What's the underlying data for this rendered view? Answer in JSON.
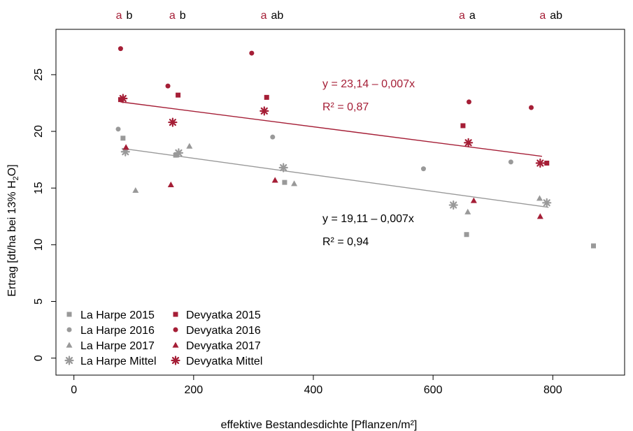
{
  "chart_data": {
    "type": "scatter",
    "xlabel": "effektive Bestandesdichte [Pflanzen/m²]",
    "ylabel_main": "Ertrag [dt/ha bei 13% H",
    "ylabel_sub": "2",
    "ylabel_end": "O]",
    "xlim": [
      -30,
      920
    ],
    "ylim": [
      -1.5,
      29
    ],
    "xticks": [
      0,
      200,
      400,
      600,
      800
    ],
    "yticks": [
      0,
      5,
      10,
      15,
      20,
      25
    ],
    "colors": {
      "la_harpe": "#999999",
      "devyatka": "#a51e36",
      "la_harpe_line": "#999999",
      "devyatka_line": "#a51e36"
    },
    "series": [
      {
        "name": "La Harpe 2015",
        "marker": "square",
        "color": "#999999",
        "points": [
          [
            82,
            19.4
          ],
          [
            170,
            17.9
          ],
          [
            352,
            15.5
          ],
          [
            656,
            10.9
          ],
          [
            868,
            9.9
          ]
        ]
      },
      {
        "name": "La Harpe 2016",
        "marker": "circle",
        "color": "#999999",
        "points": [
          [
            74,
            20.2
          ],
          [
            332,
            19.5
          ],
          [
            584,
            16.7
          ],
          [
            730,
            17.3
          ]
        ]
      },
      {
        "name": "La Harpe 2017",
        "marker": "triangle",
        "color": "#999999",
        "points": [
          [
            103,
            14.8
          ],
          [
            193,
            18.7
          ],
          [
            368,
            15.4
          ],
          [
            658,
            12.9
          ],
          [
            778,
            14.1
          ]
        ]
      },
      {
        "name": "La Harpe Mittel",
        "marker": "star",
        "color": "#999999",
        "points": [
          [
            86,
            18.2
          ],
          [
            175,
            18.1
          ],
          [
            350,
            16.8
          ],
          [
            634,
            13.5
          ],
          [
            790,
            13.7
          ]
        ]
      },
      {
        "name": "Devyatka 2015",
        "marker": "square",
        "color": "#a51e36",
        "points": [
          [
            78,
            22.8
          ],
          [
            174,
            23.2
          ],
          [
            322,
            23.0
          ],
          [
            650,
            20.5
          ],
          [
            790,
            17.2
          ]
        ]
      },
      {
        "name": "Devyatka 2016",
        "marker": "circle",
        "color": "#a51e36",
        "points": [
          [
            78,
            27.3
          ],
          [
            157,
            24.0
          ],
          [
            297,
            26.9
          ],
          [
            660,
            22.6
          ],
          [
            764,
            22.1
          ]
        ]
      },
      {
        "name": "Devyatka 2017",
        "marker": "triangle",
        "color": "#a51e36",
        "points": [
          [
            87,
            18.6
          ],
          [
            162,
            15.3
          ],
          [
            336,
            15.7
          ],
          [
            668,
            13.9
          ],
          [
            779,
            12.5
          ]
        ]
      },
      {
        "name": "Devyatka Mittel",
        "marker": "star",
        "color": "#a51e36",
        "points": [
          [
            82,
            22.9
          ],
          [
            165,
            20.8
          ],
          [
            318,
            21.8
          ],
          [
            659,
            19.0
          ],
          [
            779,
            17.2
          ]
        ]
      }
    ],
    "regression_lines": [
      {
        "name": "Devyatka",
        "color": "#a51e36",
        "x": [
          78,
          782
        ],
        "y": [
          22.6,
          17.8
        ],
        "equation": "y = 23,14 – 0,007x",
        "r2": "R² = 0,87"
      },
      {
        "name": "La Harpe",
        "color": "#999999",
        "x": [
          80,
          793
        ],
        "y": [
          18.5,
          13.3
        ],
        "equation": "y = 19,11 – 0,007x",
        "r2": "R² = 0,94"
      }
    ],
    "significance_letters": [
      {
        "x": 84,
        "first": "a",
        "second": "b"
      },
      {
        "x": 173,
        "first": "a",
        "second": "b"
      },
      {
        "x": 331,
        "first": "a",
        "second": "ab"
      },
      {
        "x": 657,
        "first": "a",
        "second": "a"
      },
      {
        "x": 797,
        "first": "a",
        "second": "ab"
      }
    ],
    "legend": {
      "placement": "bottom-left",
      "la_harpe": [
        "La Harpe 2015",
        "La Harpe 2016",
        "La Harpe 2017",
        "La Harpe Mittel"
      ],
      "devyatka": [
        "Devyatka 2015",
        "Devyatka 2016",
        "Devyatka 2017",
        "Devyatka Mittel"
      ]
    },
    "grid": false
  }
}
